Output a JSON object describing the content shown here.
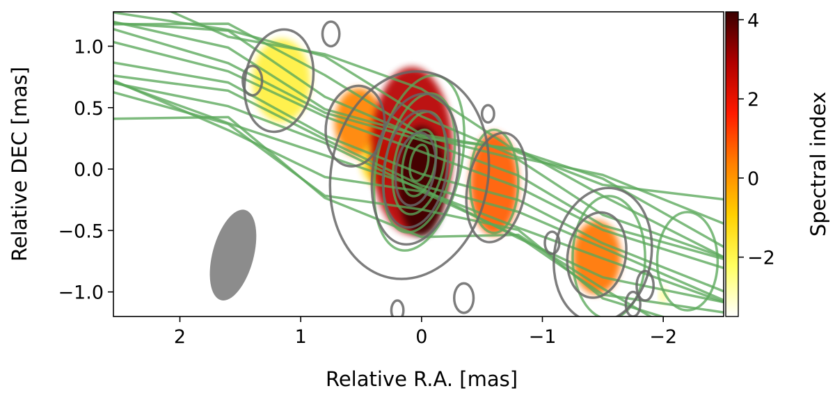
{
  "chart_data": {
    "type": "heatmap",
    "xlabel": "Relative R.A. [mas]",
    "ylabel": "Relative DEC [mas]",
    "xlim": [
      2.55,
      -2.5
    ],
    "ylim": [
      -1.2,
      1.28
    ],
    "x_ticks": [
      {
        "value": 2,
        "label": "2"
      },
      {
        "value": 1,
        "label": "1"
      },
      {
        "value": 0,
        "label": "0"
      },
      {
        "value": -1,
        "label": "−1"
      },
      {
        "value": -2,
        "label": "−2"
      }
    ],
    "y_ticks": [
      {
        "value": 1.0,
        "label": "1.0"
      },
      {
        "value": 0.5,
        "label": "0.5"
      },
      {
        "value": 0.0,
        "label": "0.0"
      },
      {
        "value": -0.5,
        "label": "−0.5"
      },
      {
        "value": -1.0,
        "label": "−1.0"
      }
    ],
    "colorbar": {
      "label": "Spectral index",
      "range": [
        -3.5,
        4.2
      ],
      "ticks": [
        {
          "value": 4,
          "label": "4"
        },
        {
          "value": 2,
          "label": "2"
        },
        {
          "value": 0,
          "label": "0"
        },
        {
          "value": -2,
          "label": "−2"
        }
      ],
      "colormap": "hot_r",
      "colors": [
        "#ffffff",
        "#ffff60",
        "#ffd000",
        "#ff8000",
        "#ff1a00",
        "#b00000",
        "#3a0000"
      ]
    },
    "spectral_index_regions": [
      {
        "x": 1.16,
        "y": 0.72,
        "rx": 0.24,
        "ry": 0.34,
        "index": -1.8
      },
      {
        "x": 0.52,
        "y": 0.38,
        "rx": 0.2,
        "ry": 0.28,
        "index": 0.3
      },
      {
        "x": 0.35,
        "y": 0.05,
        "rx": 0.15,
        "ry": 0.18,
        "index": -1.2
      },
      {
        "x": 0.08,
        "y": 0.15,
        "rx": 0.34,
        "ry": 0.68,
        "index": 2.8
      },
      {
        "x": 0.0,
        "y": -0.1,
        "rx": 0.2,
        "ry": 0.45,
        "index": 4.2
      },
      {
        "x": -0.6,
        "y": -0.12,
        "rx": 0.2,
        "ry": 0.42,
        "index": 0.8
      },
      {
        "x": -1.45,
        "y": -0.72,
        "rx": 0.2,
        "ry": 0.3,
        "index": 0.5
      },
      {
        "x": -2.0,
        "y": -1.03,
        "rx": 0.03,
        "ry": 0.06,
        "index": -2.5
      }
    ],
    "contour_sets": [
      {
        "color": "#5aa85a",
        "width": 3.5,
        "opacity": 0.78
      },
      {
        "color": "#666666",
        "width": 3.5,
        "opacity": 0.85
      }
    ],
    "beam": {
      "x": 1.56,
      "y": -0.7,
      "rx": 0.17,
      "ry": 0.38,
      "angle_deg": 15,
      "color": "#8c8c8c"
    }
  }
}
